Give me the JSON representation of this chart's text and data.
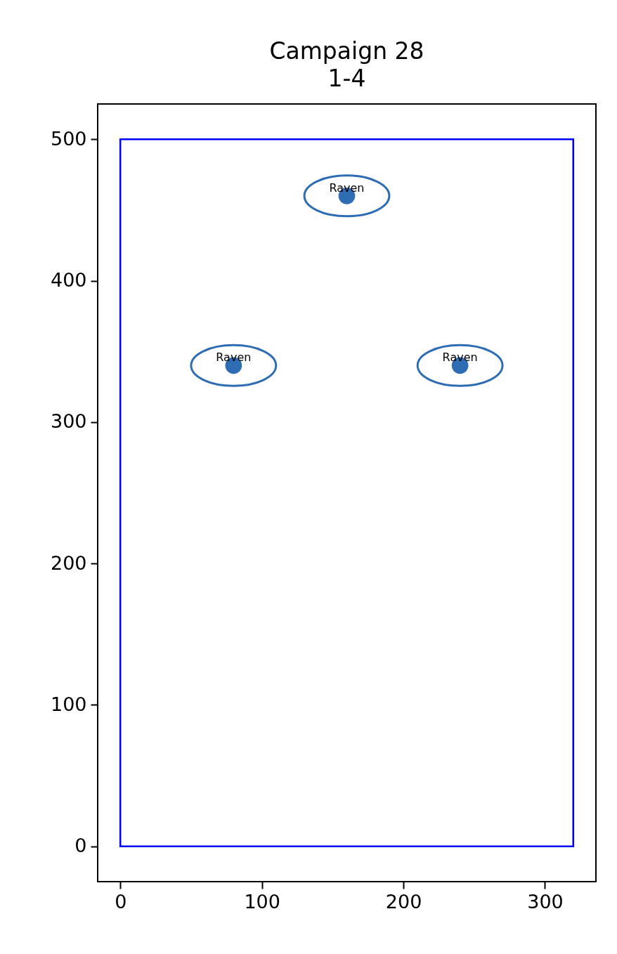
{
  "chart_data": {
    "type": "scatter",
    "title": "Campaign 28",
    "subtitle": "1-4",
    "xlim": [
      -16,
      336
    ],
    "ylim": [
      -25,
      525
    ],
    "xticks": [
      0,
      100,
      200,
      300
    ],
    "yticks": [
      0,
      100,
      200,
      300,
      400,
      500
    ],
    "series": [
      {
        "type": "line",
        "color": "#0000ff",
        "marker": "none",
        "x": [
          0,
          320
        ],
        "values": [
          0,
          0
        ]
      },
      {
        "type": "line",
        "color": "#0000ff",
        "marker": "none",
        "x": [
          320,
          320
        ],
        "values": [
          0,
          500
        ]
      },
      {
        "type": "line",
        "color": "#0000ff",
        "marker": "none",
        "x": [
          0,
          320
        ],
        "values": [
          500,
          500
        ]
      },
      {
        "type": "line",
        "color": "#0000ff",
        "marker": "none",
        "x": [
          0,
          0
        ],
        "values": [
          0,
          500
        ]
      },
      {
        "color": "#2e6db4",
        "marker": "circle",
        "x": [
          80,
          160,
          240
        ],
        "values": [
          340,
          460,
          340
        ]
      }
    ],
    "annotations": [
      {
        "text": "Raven",
        "x": 80,
        "y": 340
      },
      {
        "text": "Raven",
        "x": 160,
        "y": 460
      },
      {
        "text": "Raven",
        "x": 240,
        "y": 340
      }
    ]
  }
}
